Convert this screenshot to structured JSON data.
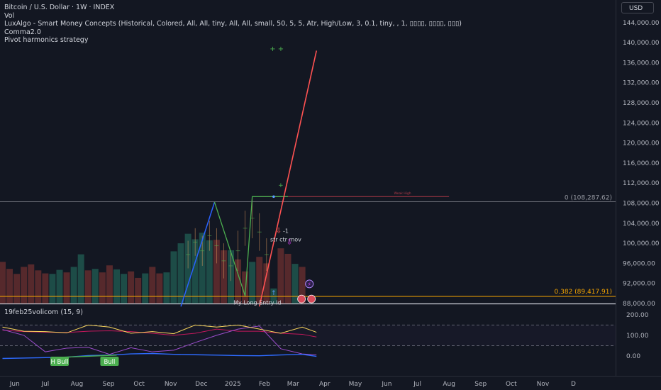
{
  "header": {
    "symbol_line": "Bitcoin / U.S. Dollar · 1W · INDEX",
    "indicators": [
      "Vol",
      "LuxAlgo - Smart Money Concepts (Historical, Colored, All, All, tiny, All, All, small, 50, 5, 5, Atr, High/Low, 3, 0.1, tiny, , 1, ▯▯▯▯, ▯▯▯▯, ▯▯▯)",
      "Comma2.0",
      "Pivot harmonics strategy"
    ],
    "currency_button": "USD"
  },
  "colors": {
    "background": "#131722",
    "axis_text": "#b2b5be",
    "up": "#26a69a",
    "down": "#ef5350",
    "fib_line": "#f7a600",
    "trend_line": "#ff5252",
    "wave_blue": "#2962ff",
    "wave_green": "#4caf50"
  },
  "chart_data": [
    {
      "type": "bar",
      "name": "price-pane",
      "yaxis_ticks": [
        "88,000.00",
        "92,000.00",
        "96,000.00",
        "100,000.00",
        "104,000.00",
        "108,000.00",
        "112,000.00",
        "116,000.00",
        "120,000.00",
        "124,000.00",
        "128,000.00",
        "132,000.00",
        "136,000.00",
        "140,000.00",
        "144,000.00"
      ],
      "ylim": [
        87400,
        145600
      ],
      "xaxis_ticks": [
        "Jun",
        "Jul",
        "Aug",
        "Sep",
        "Oct",
        "Nov",
        "Dec",
        "2025",
        "Feb",
        "Mar",
        "Apr",
        "May",
        "Jun",
        "Jul",
        "Aug",
        "Sep",
        "Oct",
        "Nov",
        "D"
      ],
      "volume_bars": {
        "x": [
          "2024-05-20",
          "2024-05-27",
          "2024-06-03",
          "2024-06-10",
          "2024-06-17",
          "2024-06-24",
          "2024-07-01",
          "2024-07-08",
          "2024-07-15",
          "2024-07-22",
          "2024-07-29",
          "2024-08-05",
          "2024-08-12",
          "2024-08-19",
          "2024-08-26",
          "2024-09-02",
          "2024-09-09",
          "2024-09-16",
          "2024-09-23",
          "2024-09-30",
          "2024-10-07",
          "2024-10-14",
          "2024-10-21",
          "2024-10-28",
          "2024-11-04",
          "2024-11-11",
          "2024-11-18",
          "2024-11-25",
          "2024-12-02",
          "2024-12-09",
          "2024-12-16",
          "2024-12-23",
          "2024-12-30",
          "2025-01-06",
          "2025-01-13",
          "2025-01-20",
          "2025-01-27",
          "2025-02-03",
          "2025-02-10",
          "2025-02-17",
          "2025-02-24",
          "2025-03-03",
          "2025-03-10"
        ],
        "values": [
          96300,
          94900,
          93900,
          95300,
          95800,
          94600,
          94000,
          93900,
          94700,
          94200,
          95300,
          97800,
          94600,
          94900,
          94200,
          95600,
          94800,
          93900,
          94400,
          93100,
          94000,
          95300,
          94000,
          94200,
          98400,
          100000,
          101900,
          100800,
          102100,
          100600,
          100700,
          98600,
          98600,
          96800,
          94400,
          96300,
          97300,
          96000,
          91000,
          99000,
          97900,
          95900,
          95300
        ],
        "colors": [
          "down",
          "down",
          "down",
          "down",
          "down",
          "down",
          "down",
          "up",
          "up",
          "down",
          "up",
          "up",
          "down",
          "up",
          "down",
          "down",
          "up",
          "up",
          "down",
          "down",
          "up",
          "down",
          "down",
          "up",
          "up",
          "up",
          "up",
          "up",
          "up",
          "up",
          "down",
          "down",
          "up",
          "down",
          "down",
          "up",
          "down",
          "down",
          "up",
          "down",
          "down",
          "up",
          "down"
        ]
      },
      "lines": [
        {
          "name": "blue-wave",
          "points": [
            [
              "2024-11-11",
              87400
            ],
            [
              "2024-12-14",
              108200
            ]
          ]
        },
        {
          "name": "green-wave",
          "points": [
            [
              "2024-12-14",
              108200
            ],
            [
              "2025-01-13",
              89500
            ],
            [
              "2025-01-20",
              109300
            ],
            [
              "2025-02-24",
              109300
            ]
          ]
        },
        {
          "name": "red-projection",
          "points": [
            [
              "2025-01-27",
              87400
            ],
            [
              "2025-03-24",
              138400
            ]
          ]
        },
        {
          "name": "top-horizontal",
          "points": [
            [
              "2024-05-01",
              108300
            ],
            [
              "2025-01-06",
              108300
            ]
          ]
        }
      ],
      "annotations": [
        {
          "text": "str ctr mov",
          "x": "2025-02-17",
          "y": 100900
        },
        {
          "text": "-1",
          "x": "2025-02-17",
          "y": 102600
        },
        {
          "text": "My Long Entry Id",
          "x": "2025-01-27",
          "y": 88200
        },
        {
          "text": "Weak High",
          "x": "2025-06-08",
          "y": 109800
        }
      ],
      "fib_levels": [
        {
          "label": "0 (108,287.62)",
          "value": 108287.62,
          "color": "#787b86"
        },
        {
          "label": "0.382 (89,417.91)",
          "value": 89417.91,
          "color": "#f7a600"
        }
      ]
    },
    {
      "type": "line",
      "name": "19feb25volicom (15, 9)",
      "yaxis_ticks": [
        "200.00",
        "100.00",
        "0.00"
      ],
      "ylim": [
        -75,
        240
      ],
      "hlines": [
        150,
        50
      ],
      "labels": [
        {
          "text": "H Bull",
          "x": "2024-07-15"
        },
        {
          "text": "Bull",
          "x": "2024-09-02"
        }
      ]
    }
  ]
}
